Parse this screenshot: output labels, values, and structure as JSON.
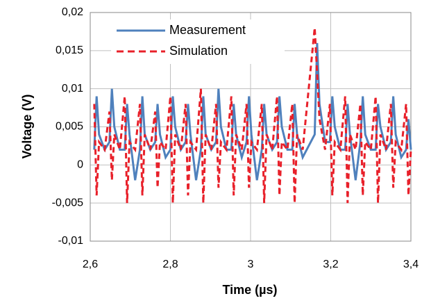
{
  "chart_data": {
    "type": "line",
    "x_label": "Time (µs)",
    "y_label": "Voltage (V)",
    "xlim": [
      2.6,
      3.4
    ],
    "xticks": [
      {
        "value": 2.6,
        "label": "2,6"
      },
      {
        "value": 2.8,
        "label": "2,8"
      },
      3,
      {
        "value": 3.2,
        "label": "3,2"
      },
      {
        "value": 3.4,
        "label": "3,4"
      }
    ],
    "ylim": [
      -0.01,
      0.02
    ],
    "yticks": [
      {
        "value": -0.01,
        "label": "-0,01"
      },
      {
        "value": -0.005,
        "label": "-0,005"
      },
      0,
      {
        "value": 0.005,
        "label": "0,005"
      },
      {
        "value": 0.01,
        "label": "0,01"
      },
      {
        "value": 0.015,
        "label": "0,015"
      },
      {
        "value": 0.02,
        "label": "0,02"
      }
    ],
    "grid": true,
    "legend": "upper left",
    "x": [
      2.61,
      2.616,
      2.622,
      2.636,
      2.648,
      2.654,
      2.66,
      2.674,
      2.686,
      2.692,
      2.698,
      2.712,
      2.724,
      2.73,
      2.736,
      2.75,
      2.762,
      2.768,
      2.774,
      2.788,
      2.8,
      2.806,
      2.812,
      2.826,
      2.838,
      2.844,
      2.85,
      2.864,
      2.876,
      2.882,
      2.888,
      2.902,
      2.914,
      2.92,
      2.926,
      2.94,
      2.952,
      2.958,
      2.964,
      2.978,
      2.99,
      2.996,
      3.002,
      3.016,
      3.028,
      3.034,
      3.04,
      3.054,
      3.066,
      3.072,
      3.078,
      3.092,
      3.104,
      3.11,
      3.116,
      3.13,
      3.16,
      3.166,
      3.172,
      3.186,
      3.198,
      3.204,
      3.21,
      3.224,
      3.236,
      3.242,
      3.248,
      3.262,
      3.274,
      3.28,
      3.286,
      3.3,
      3.312,
      3.318,
      3.324,
      3.338,
      3.35,
      3.356,
      3.362,
      3.376,
      3.388,
      3.394,
      3.4
    ],
    "series": [
      {
        "name": "Measurement",
        "color": "#4f81bd",
        "dash": false,
        "values": [
          0.002,
          0.009,
          0.004,
          0.002,
          0.003,
          0.01,
          0.005,
          0.002,
          0.002,
          0.008,
          0.004,
          -0.002,
          0.002,
          0.009,
          0.004,
          0.002,
          0.003,
          0.008,
          0.004,
          0.001,
          0.002,
          0.009,
          0.005,
          0.002,
          0.003,
          0.008,
          0.004,
          -0.002,
          0.002,
          0.009,
          0.004,
          0.002,
          0.003,
          0.01,
          0.005,
          0.002,
          0.002,
          0.008,
          0.004,
          0.001,
          0.003,
          0.009,
          0.004,
          -0.002,
          0.002,
          0.008,
          0.004,
          0.002,
          0.003,
          0.009,
          0.005,
          0.002,
          0.002,
          0.008,
          0.004,
          0.001,
          0.004,
          0.016,
          0.008,
          0.003,
          0.003,
          0.009,
          0.005,
          0.002,
          0.002,
          0.008,
          0.004,
          -0.002,
          0.003,
          0.009,
          0.004,
          0.002,
          0.002,
          0.008,
          0.005,
          0.002,
          0.003,
          0.009,
          0.004,
          0.001,
          0.002,
          0.006,
          0.002
        ]
      },
      {
        "name": "Simulation",
        "color": "#e8202a",
        "dash": true,
        "values": [
          0.008,
          -0.004,
          0.003,
          0.002,
          0.007,
          -0.002,
          0.004,
          0.002,
          0.009,
          -0.005,
          0.003,
          0.002,
          0.008,
          -0.004,
          0.004,
          0.002,
          0.007,
          -0.003,
          0.003,
          0.002,
          0.009,
          -0.005,
          0.004,
          0.002,
          0.008,
          -0.004,
          0.003,
          0.002,
          0.01,
          -0.005,
          0.004,
          0.002,
          0.008,
          -0.003,
          0.003,
          0.002,
          0.009,
          -0.004,
          0.004,
          0.002,
          0.008,
          -0.003,
          0.003,
          0.002,
          0.008,
          -0.005,
          0.004,
          0.002,
          0.009,
          -0.004,
          0.003,
          0.002,
          0.008,
          -0.005,
          0.004,
          0.002,
          0.018,
          0.012,
          0.006,
          0.002,
          0.008,
          -0.004,
          0.003,
          0.002,
          0.009,
          -0.005,
          0.004,
          0.002,
          0.008,
          -0.004,
          0.003,
          0.002,
          0.009,
          -0.005,
          0.004,
          0.002,
          0.008,
          -0.003,
          0.003,
          0.002,
          0.008,
          -0.004,
          0.002
        ]
      }
    ]
  }
}
